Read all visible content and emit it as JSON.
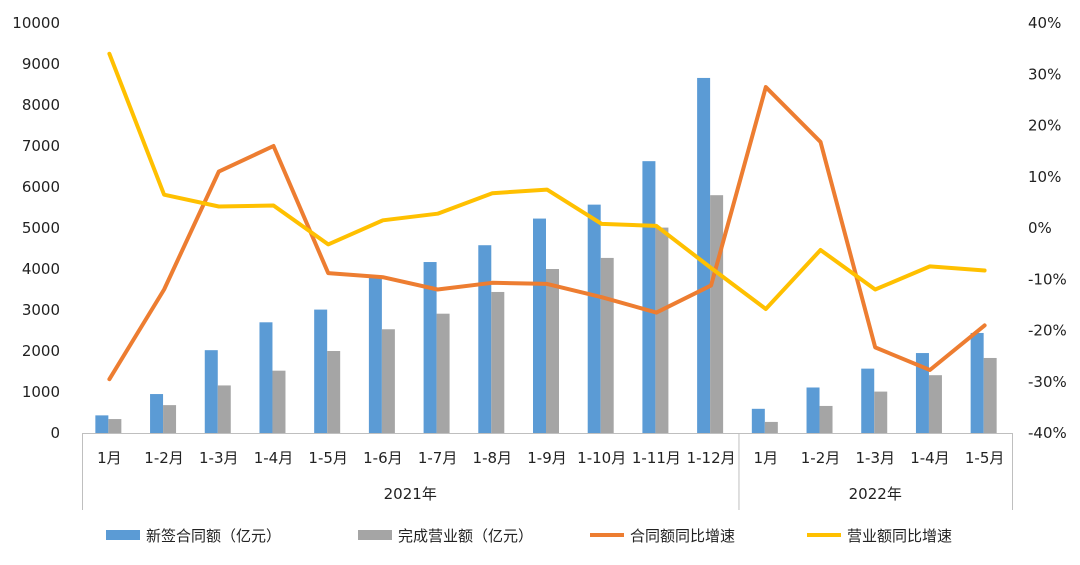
{
  "chart_data": {
    "type": "bar",
    "categories": [
      "1月",
      "1-2月",
      "1-3月",
      "1-4月",
      "1-5月",
      "1-6月",
      "1-7月",
      "1-8月",
      "1-9月",
      "1-10月",
      "1-11月",
      "1-12月",
      "1月",
      "1-2月",
      "1-3月",
      "1-4月",
      "1-5月"
    ],
    "groups": [
      {
        "label": "2021年",
        "start": 0,
        "end": 11
      },
      {
        "label": "2022年",
        "start": 12,
        "end": 16
      }
    ],
    "y_left": {
      "min": 0,
      "max": 10000,
      "step": 1000,
      "ticks": [
        "0",
        "1000",
        "2000",
        "3000",
        "4000",
        "5000",
        "6000",
        "7000",
        "8000",
        "9000",
        "10000"
      ]
    },
    "y_right": {
      "min": -40,
      "max": 40,
      "step": 10,
      "ticks": [
        "-40%",
        "-30%",
        "-20%",
        "-10%",
        "0%",
        "10%",
        "20%",
        "30%",
        "40%"
      ]
    },
    "series": [
      {
        "name": "新签合同额（亿元）",
        "type": "bar",
        "axis": "left",
        "color": "#5B9BD5",
        "values": [
          430,
          950,
          2020,
          2700,
          3010,
          3830,
          4170,
          4580,
          5230,
          5570,
          6630,
          8660,
          590,
          1110,
          1570,
          1950,
          2440
        ]
      },
      {
        "name": "完成营业额（亿元）",
        "type": "bar",
        "axis": "left",
        "color": "#A5A5A5",
        "values": [
          340,
          680,
          1160,
          1520,
          2000,
          2530,
          2910,
          3440,
          4000,
          4270,
          5010,
          5800,
          270,
          660,
          1010,
          1410,
          1830
        ]
      },
      {
        "name": "合同额同比增速",
        "type": "line",
        "axis": "right",
        "color": "#ED7D31",
        "values": [
          -29.5,
          -12,
          11,
          16,
          -8.8,
          -9.6,
          -12,
          -10.7,
          -10.9,
          -13.5,
          -16.5,
          -11.2,
          27.5,
          16.8,
          -23.3,
          -27.7,
          -19
        ]
      },
      {
        "name": "营业额同比增速",
        "type": "line",
        "axis": "right",
        "color": "#FFC000",
        "values": [
          34,
          6.5,
          4.2,
          4.4,
          -3.2,
          1.5,
          2.8,
          6.8,
          7.5,
          0.8,
          0.4,
          -7.8,
          -15.8,
          -4.3,
          -12,
          -7.5,
          -8.3
        ]
      }
    ]
  }
}
